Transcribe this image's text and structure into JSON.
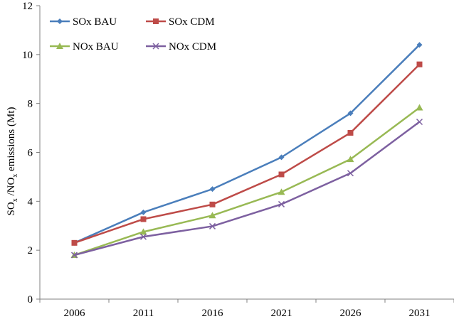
{
  "chart_data": {
    "type": "line",
    "title": "",
    "xlabel": "",
    "ylabel": {
      "prefix": "SO",
      "sub1": "x",
      "mid": " /NO",
      "sub2": "x",
      "suffix": " emissions (Mt)"
    },
    "x": [
      "2006",
      "2011",
      "2016",
      "2021",
      "2026",
      "2031"
    ],
    "ylim": [
      0,
      12
    ],
    "yticks": [
      "0",
      "2",
      "4",
      "6",
      "8",
      "10",
      "12"
    ],
    "grid": false,
    "legend_position": "top-left",
    "series": [
      {
        "name": "SOx BAU",
        "color": "#4A7EBB",
        "marker": "diamond",
        "values": [
          2.3,
          3.55,
          4.5,
          5.8,
          7.6,
          10.4
        ]
      },
      {
        "name": "SOx CDM",
        "color": "#BE4B48",
        "marker": "square",
        "values": [
          2.3,
          3.27,
          3.87,
          5.1,
          6.8,
          9.6
        ]
      },
      {
        "name": "NOx BAU",
        "color": "#98B954",
        "marker": "triangle",
        "values": [
          1.8,
          2.75,
          3.42,
          4.38,
          5.72,
          7.83
        ]
      },
      {
        "name": "NOx CDM",
        "color": "#7D60A0",
        "marker": "x",
        "values": [
          1.8,
          2.55,
          2.98,
          3.88,
          5.15,
          7.25
        ]
      }
    ]
  }
}
